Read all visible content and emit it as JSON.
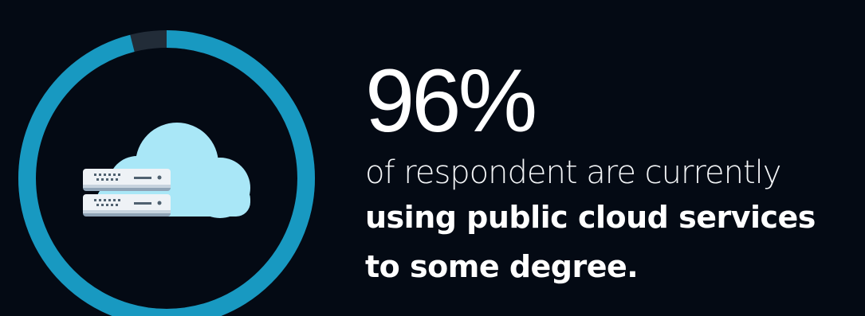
{
  "stat": {
    "value": "96%",
    "fraction": 0.96,
    "description_light": "of respondent are currently",
    "description_bold_line1": "using public cloud services",
    "description_bold_line2": "to some degree."
  },
  "colors": {
    "background": "#040a14",
    "ring_fill": "#1899c1",
    "ring_track": "#222c38",
    "cloud": "#a9e7f7",
    "server_body": "#eef2f6",
    "server_shadow": "#8fa3b6",
    "text": "#ffffff"
  },
  "icons": {
    "ring": "progress-ring",
    "cloud": "cloud-icon",
    "server": "server-icon"
  }
}
